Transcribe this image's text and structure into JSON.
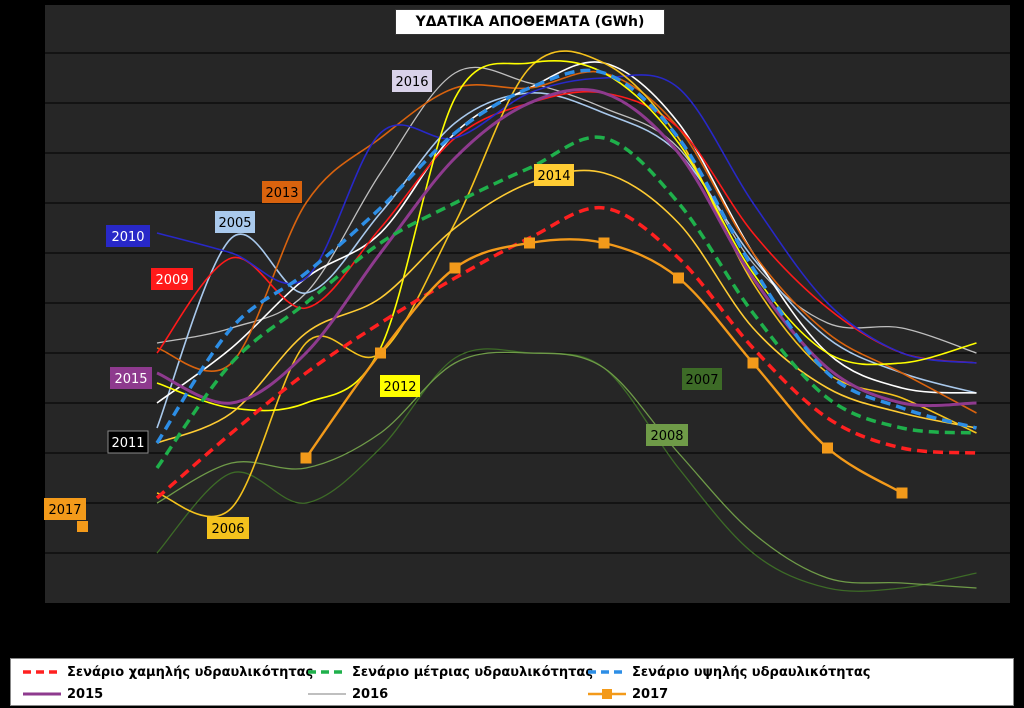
{
  "title": "ΥΔΑΤΙΚΑ ΑΠΟΘΕΜΑΤΑ (GWh)",
  "colors": {
    "background": "#000000",
    "plot": "#262626",
    "grid": "#000000",
    "y2005": "#a9c9ec",
    "y2006": "#f4c21d",
    "y2007": "#3d6b27",
    "y2008": "#6f9b48",
    "y2009": "#ff1a1a",
    "y2010": "#2828c8",
    "y2011": "#ffffff",
    "y2012": "#ffff00",
    "y2013": "#d9630e",
    "y2014": "#ffcc33",
    "y2015": "#8e3a8e",
    "y2016": "#bfbfbf",
    "y2017": "#f39a1a",
    "low": "#ff2020",
    "medium": "#1fb04b",
    "high": "#2d8ee6"
  },
  "legend": [
    {
      "name": "Σενάριο χαμηλής υδραυλικότητας",
      "color": "#ff2020",
      "style": "dashed"
    },
    {
      "name": "Σενάριο μέτριας υδραυλικότητας",
      "color": "#1fb04b",
      "style": "dashed"
    },
    {
      "name": "Σενάριο υψηλής υδραυλικότητας",
      "color": "#2d8ee6",
      "style": "dashed"
    },
    {
      "name": "2015",
      "color": "#8e3a8e",
      "style": "solid"
    },
    {
      "name": "2016",
      "color": "#bfbfbf",
      "style": "solid"
    },
    {
      "name": "2017",
      "color": "#f39a1a",
      "style": "marker"
    }
  ],
  "chart_data": {
    "type": "line",
    "title": "ΥΔΑΤΙΚΑ ΑΠΟΘΕΜΑΤΑ (GWh)",
    "x_points": 12,
    "y_range": [
      0,
      11
    ],
    "grid": true,
    "legend_position": "bottom",
    "series": [
      {
        "name": "Σενάριο χαμηλής υδραυλικότητας",
        "key": "low",
        "style": "dashed",
        "values": [
          2.1,
          3.4,
          4.6,
          5.6,
          6.5,
          7.3,
          7.9,
          6.9,
          5.1,
          3.7,
          3.1,
          3.0
        ]
      },
      {
        "name": "Σενάριο μέτριας υδραυλικότητας",
        "key": "medium",
        "style": "dashed",
        "values": [
          2.7,
          4.8,
          6.0,
          7.2,
          8.0,
          8.7,
          9.3,
          8.0,
          5.8,
          4.1,
          3.5,
          3.4
        ]
      },
      {
        "name": "Σενάριο υψηλής υδραυλικότητας",
        "key": "high",
        "style": "dashed",
        "values": [
          3.2,
          5.5,
          6.6,
          7.9,
          9.4,
          10.3,
          10.6,
          9.3,
          6.7,
          4.6,
          3.9,
          3.5
        ]
      },
      {
        "name": "2005",
        "key": "y2005",
        "values": [
          3.5,
          7.3,
          6.2,
          7.8,
          9.6,
          10.2,
          9.8,
          9.0,
          6.9,
          5.3,
          4.6,
          4.2
        ]
      },
      {
        "name": "2006",
        "key": "y2006",
        "values": [
          2.2,
          1.9,
          5.2,
          5.0,
          7.6,
          10.7,
          10.8,
          9.3,
          6.4,
          4.6,
          4.1,
          3.4
        ]
      },
      {
        "name": "2007",
        "key": "y2007",
        "values": [
          1.0,
          2.6,
          2.0,
          3.1,
          4.9,
          5.0,
          4.7,
          2.7,
          1.0,
          0.3,
          0.3,
          0.6
        ]
      },
      {
        "name": "2008",
        "key": "y2008",
        "values": [
          2.0,
          2.8,
          2.7,
          3.4,
          4.8,
          5.0,
          4.7,
          3.0,
          1.4,
          0.5,
          0.4,
          0.3
        ]
      },
      {
        "name": "2009",
        "key": "y2009",
        "values": [
          5.0,
          6.9,
          5.9,
          7.5,
          9.3,
          10.0,
          10.2,
          9.5,
          7.4,
          5.9,
          5.0,
          4.8
        ]
      },
      {
        "name": "2010",
        "key": "y2010",
        "values": [
          7.4,
          7.0,
          6.5,
          9.4,
          9.3,
          10.2,
          10.5,
          10.3,
          8.0,
          6.0,
          5.0,
          4.8
        ]
      },
      {
        "name": "2011",
        "key": "y2011",
        "values": [
          4.0,
          5.1,
          6.5,
          7.4,
          9.4,
          10.3,
          10.8,
          9.6,
          7.0,
          5.0,
          4.3,
          4.2
        ]
      },
      {
        "name": "2012",
        "key": "y2012",
        "values": [
          4.4,
          3.9,
          4.0,
          5.1,
          10.1,
          10.8,
          10.6,
          9.2,
          6.6,
          5.0,
          4.8,
          5.2
        ]
      },
      {
        "name": "2013",
        "key": "y2013",
        "values": [
          5.1,
          4.8,
          8.0,
          9.3,
          10.3,
          10.3,
          10.6,
          9.5,
          7.0,
          5.4,
          4.6,
          3.8
        ]
      },
      {
        "name": "2014",
        "key": "y2014",
        "values": [
          3.2,
          3.8,
          5.4,
          6.1,
          7.5,
          8.4,
          8.6,
          7.6,
          5.5,
          4.3,
          3.8,
          3.5
        ]
      },
      {
        "name": "2015",
        "key": "y2015",
        "values": [
          4.6,
          4.0,
          5.0,
          7.0,
          8.9,
          10.0,
          10.2,
          9.0,
          6.5,
          4.7,
          4.0,
          4.0
        ]
      },
      {
        "name": "2016",
        "key": "y2016",
        "values": [
          5.2,
          5.5,
          6.2,
          8.6,
          10.6,
          10.4,
          9.9,
          9.1,
          6.8,
          5.6,
          5.5,
          5.0
        ]
      },
      {
        "name": "2017",
        "key": "y2017",
        "marker": "square",
        "values": [
          null,
          null,
          2.9,
          5.0,
          6.7,
          7.2,
          7.2,
          6.5,
          4.8,
          3.1,
          2.2,
          null
        ]
      }
    ],
    "point_labels": [
      {
        "text": "2016",
        "key": "y2016"
      },
      {
        "text": "2013",
        "key": "y2013"
      },
      {
        "text": "2005",
        "key": "y2005"
      },
      {
        "text": "2010",
        "key": "y2010"
      },
      {
        "text": "2009",
        "key": "y2009"
      },
      {
        "text": "2014",
        "key": "y2014"
      },
      {
        "text": "2015",
        "key": "y2015"
      },
      {
        "text": "2012",
        "key": "y2012"
      },
      {
        "text": "2011",
        "key": "y2011"
      },
      {
        "text": "2007",
        "key": "y2007"
      },
      {
        "text": "2008",
        "key": "y2008"
      },
      {
        "text": "2017",
        "key": "y2017"
      },
      {
        "text": "2006",
        "key": "y2006"
      }
    ]
  }
}
